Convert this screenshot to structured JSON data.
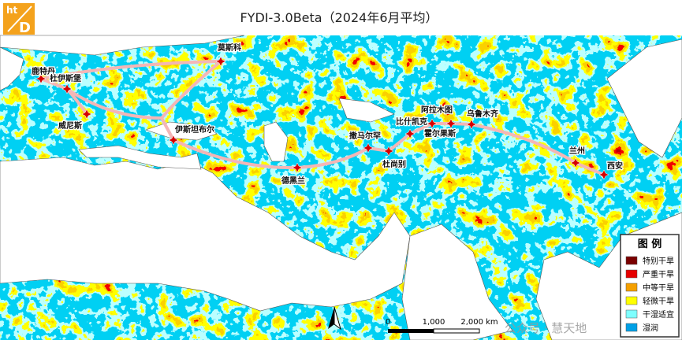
{
  "header": {
    "logo": {
      "top": "ht",
      "bottom": "D"
    },
    "title": "FYDI-3.0Beta（2024年6月平均）"
  },
  "cities": [
    "鹿特丹",
    "杜伊斯堡",
    "莫斯科",
    "威尼斯",
    "伊斯坦布尔",
    "德黑兰",
    "撒马尔罕",
    "杜尚别",
    "比什凯克",
    "阿拉木图",
    "霍尔果斯",
    "乌鲁木齐",
    "兰州",
    "西安"
  ],
  "legend": {
    "title": "图 例",
    "items": [
      {
        "label": "特别干旱",
        "color": "#7a0000"
      },
      {
        "label": "严重干旱",
        "color": "#e60000"
      },
      {
        "label": "中等干旱",
        "color": "#f5a000"
      },
      {
        "label": "轻微干旱",
        "color": "#ffff00"
      },
      {
        "label": "干湿适宜",
        "color": "#7fffff"
      },
      {
        "label": "湿润",
        "color": "#00a0e6"
      }
    ]
  },
  "scale_bar": {
    "labels": [
      "0",
      "1,000",
      "2,000 km"
    ]
  },
  "watermark": "公众号 · 慧天地"
}
